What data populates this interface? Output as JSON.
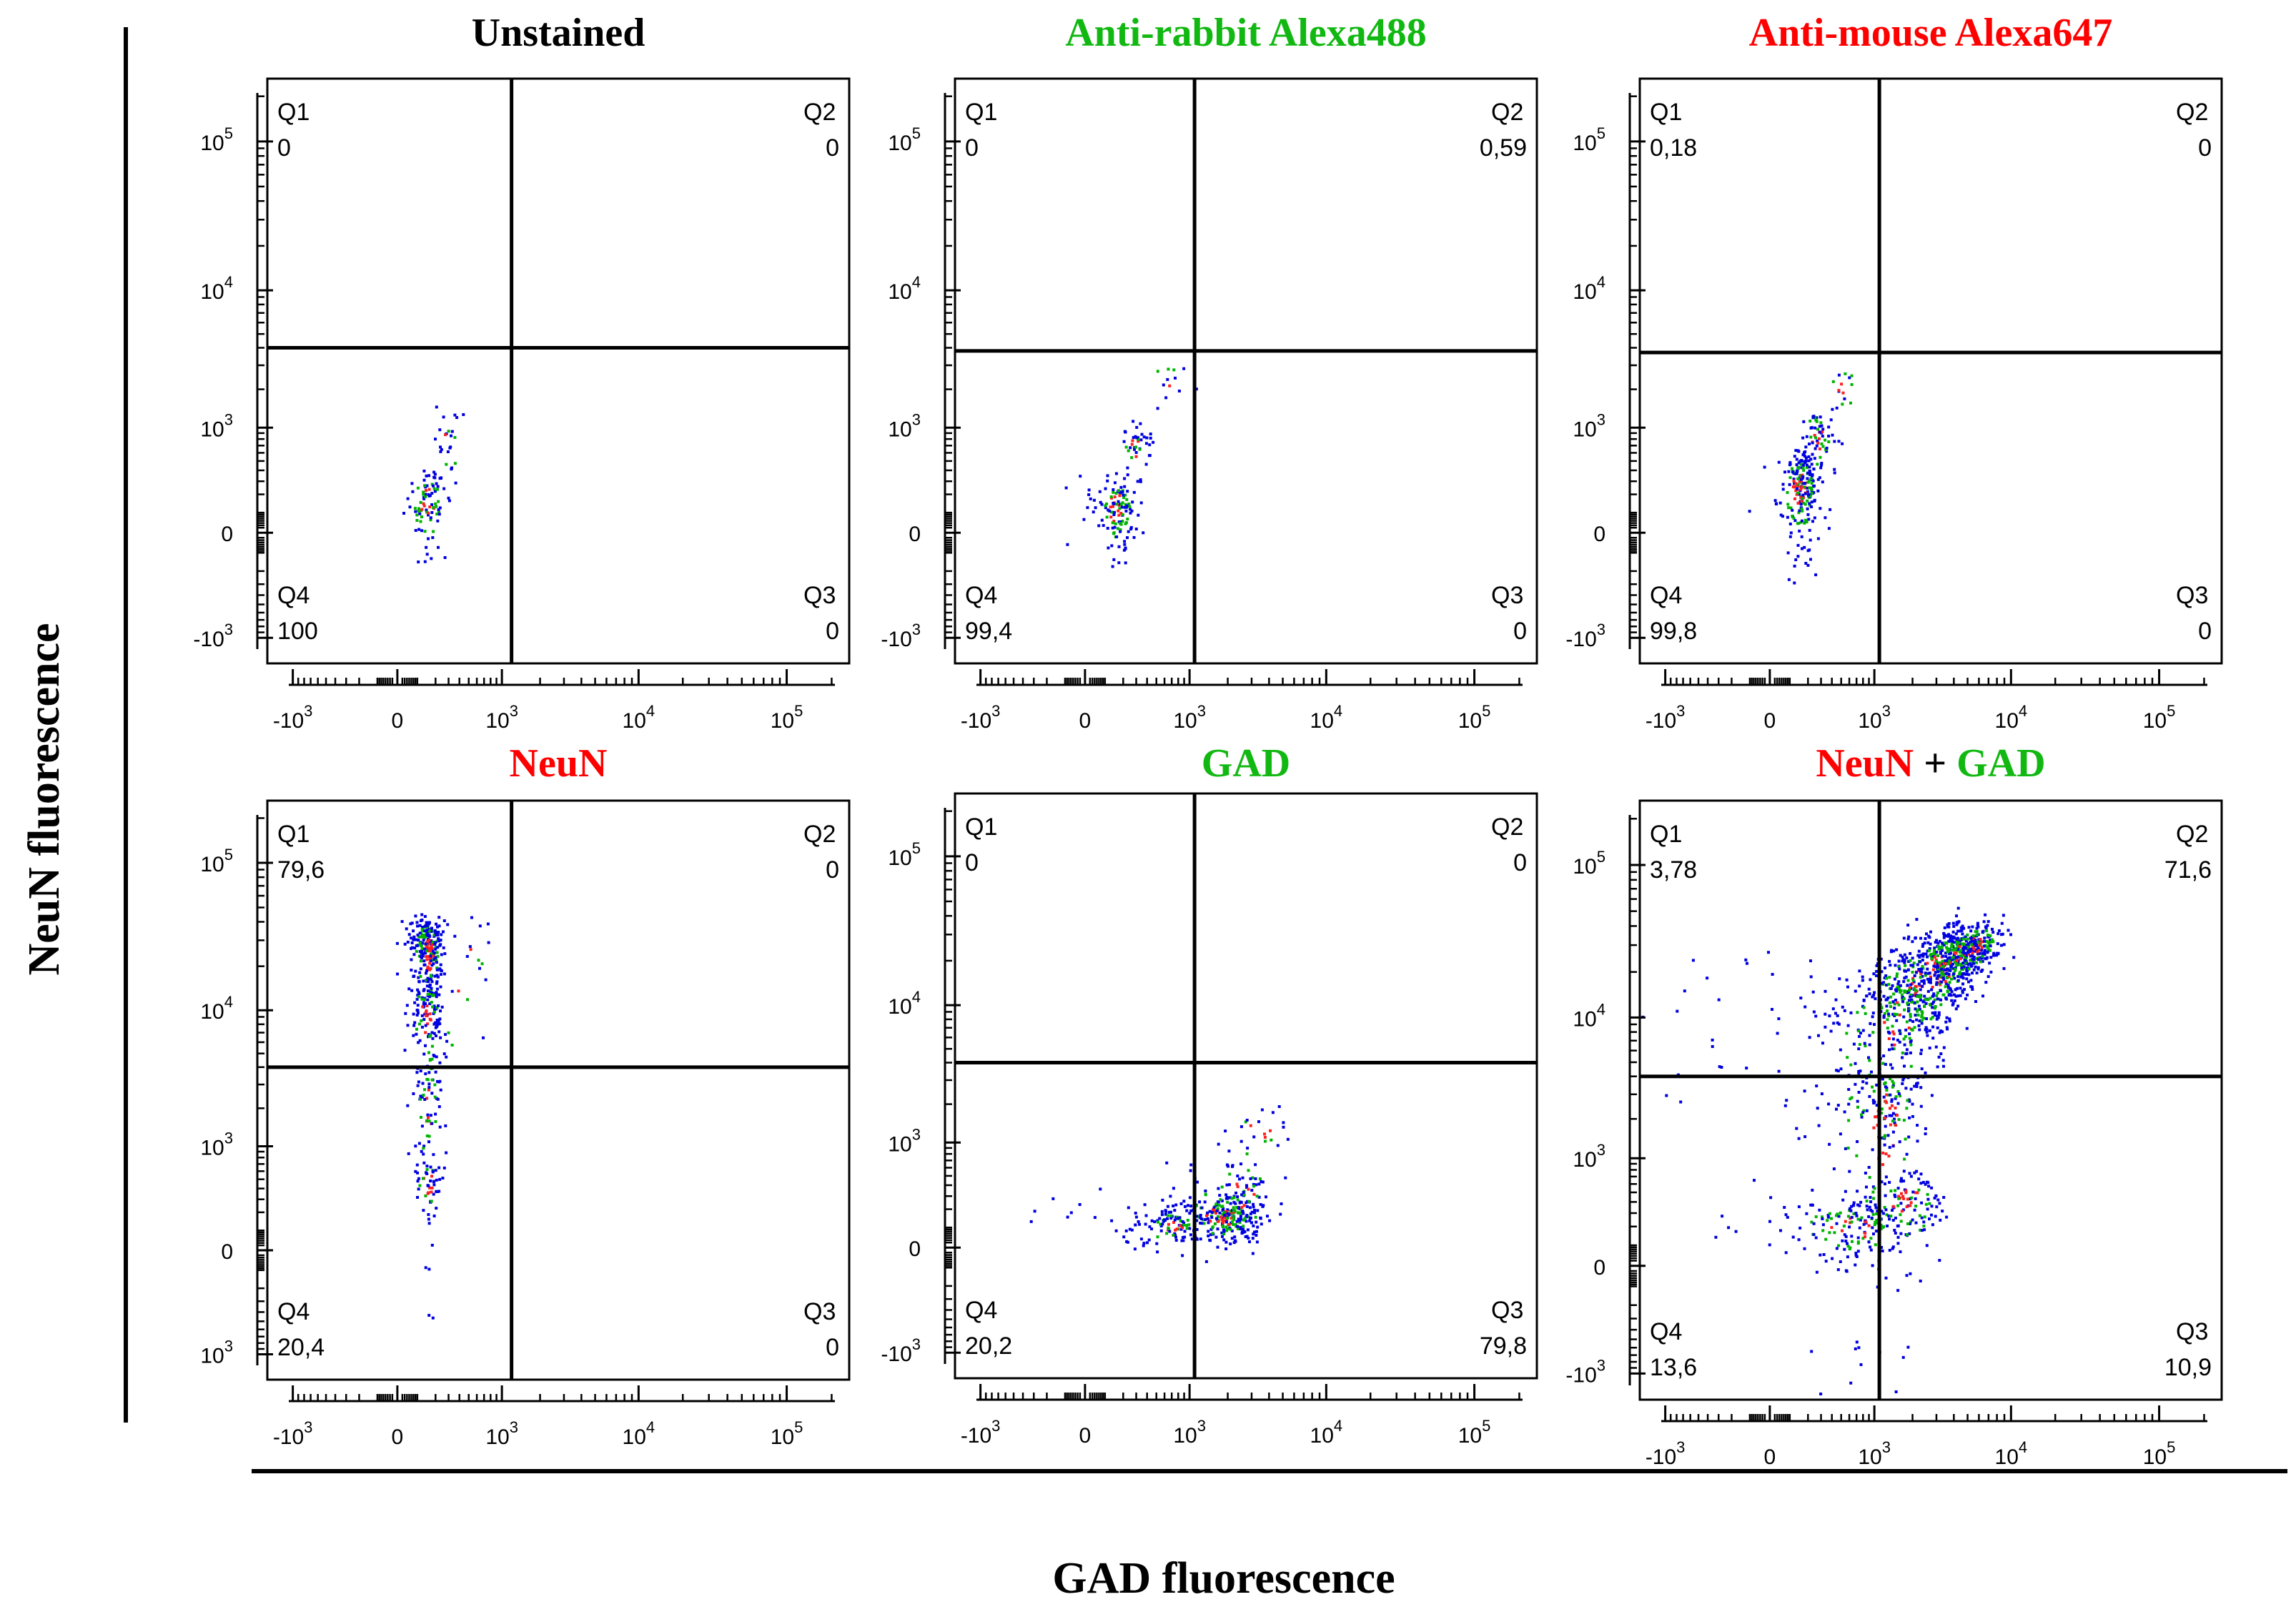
{
  "figure": {
    "y_axis_label": "NeuN fluorescence",
    "x_axis_label": "GAD fluorescence"
  },
  "colors": {
    "red": "#ff0000",
    "green": "#12b812",
    "black": "#000000",
    "density_low": "#0000e0",
    "density_mid": "#00b400",
    "density_high": "#ff2020"
  },
  "chart_data": [
    {
      "type": "scatter",
      "title_parts": [
        {
          "text": "Unstained",
          "color": "black"
        }
      ],
      "quadrants": {
        "Q1": {
          "label": "Q1",
          "value": "0"
        },
        "Q2": {
          "label": "Q2",
          "value": "0"
        },
        "Q3": {
          "label": "Q3",
          "value": "0"
        },
        "Q4": {
          "label": "Q4",
          "value": "100"
        }
      },
      "x_ticks": [
        "-10^3",
        "0",
        "10^3",
        "10^4",
        "10^5"
      ],
      "y_ticks": [
        "10^5",
        "10^4",
        "10^3",
        "0",
        "-10^3"
      ],
      "gate": {
        "x": 1200,
        "y": 4000
      },
      "clusters": [
        {
          "cx": 150,
          "cy": 150,
          "sx": 60,
          "sy": 120,
          "n": 90,
          "corr": 0
        },
        {
          "cx": 300,
          "cy": 700,
          "sx": 60,
          "sy": 300,
          "n": 25,
          "corr": 0
        }
      ]
    },
    {
      "type": "scatter",
      "title_parts": [
        {
          "text": "Anti-rabbit Alexa488",
          "color": "green"
        }
      ],
      "quadrants": {
        "Q1": {
          "label": "Q1",
          "value": "0"
        },
        "Q2": {
          "label": "Q2",
          "value": "0,59"
        },
        "Q3": {
          "label": "Q3",
          "value": "0"
        },
        "Q4": {
          "label": "Q4",
          "value": "99,4"
        }
      },
      "x_ticks": [
        "-10^3",
        "0",
        "10^3",
        "10^4",
        "10^5"
      ],
      "y_ticks": [
        "10^5",
        "10^4",
        "10^3",
        "0",
        "-10^3"
      ],
      "gate": {
        "x": 1100,
        "y": 3800
      },
      "clusters": [
        {
          "cx": 160,
          "cy": 120,
          "sx": 70,
          "sy": 110,
          "n": 130,
          "corr": 0
        },
        {
          "cx": 300,
          "cy": 650,
          "sx": 70,
          "sy": 250,
          "n": 40,
          "corr": 0
        },
        {
          "cx": 650,
          "cy": 2200,
          "sx": 150,
          "sy": 500,
          "n": 12,
          "corr": 0
        }
      ]
    },
    {
      "type": "scatter",
      "title_parts": [
        {
          "text": "Anti-mouse Alexa647",
          "color": "red"
        }
      ],
      "quadrants": {
        "Q1": {
          "label": "Q1",
          "value": "0,18"
        },
        "Q2": {
          "label": "Q2",
          "value": "0"
        },
        "Q3": {
          "label": "Q3",
          "value": "0"
        },
        "Q4": {
          "label": "Q4",
          "value": "99,8"
        }
      },
      "x_ticks": [
        "-10^3",
        "0",
        "10^3",
        "10^4",
        "10^5"
      ],
      "y_ticks": [
        "10^5",
        "10^4",
        "10^3",
        "0",
        "-10^3"
      ],
      "gate": {
        "x": 1100,
        "y": 3700
      },
      "clusters": [
        {
          "cx": 150,
          "cy": 250,
          "sx": 60,
          "sy": 180,
          "n": 220,
          "corr": 0
        },
        {
          "cx": 280,
          "cy": 850,
          "sx": 70,
          "sy": 300,
          "n": 70,
          "corr": 0
        },
        {
          "cx": 550,
          "cy": 2000,
          "sx": 120,
          "sy": 450,
          "n": 15,
          "corr": 0
        }
      ]
    },
    {
      "type": "scatter",
      "title_parts": [
        {
          "text": "NeuN",
          "color": "red"
        }
      ],
      "quadrants": {
        "Q1": {
          "label": "Q1",
          "value": "79,6"
        },
        "Q2": {
          "label": "Q2",
          "value": "0"
        },
        "Q3": {
          "label": "Q3",
          "value": "0"
        },
        "Q4": {
          "label": "Q4",
          "value": "20,4"
        }
      },
      "x_ticks": [
        "-10^3",
        "0",
        "10^3",
        "10^4",
        "10^5"
      ],
      "y_ticks": [
        "10^5",
        "10^4",
        "10^3",
        "0",
        "10^3"
      ],
      "gate": {
        "x": 1200,
        "y": 4000
      },
      "clusters": [
        {
          "cx": 150,
          "cy": 25000,
          "sx": 50,
          "sy": 9000,
          "n": 260,
          "corr": 0
        },
        {
          "cx": 150,
          "cy": 9000,
          "sx": 50,
          "sy": 4000,
          "n": 110,
          "corr": 0
        },
        {
          "cx": 150,
          "cy": 2000,
          "sx": 50,
          "sy": 1000,
          "n": 60,
          "corr": 0
        },
        {
          "cx": 150,
          "cy": 450,
          "sx": 40,
          "sy": 200,
          "n": 50,
          "corr": 0
        },
        {
          "cx": 450,
          "cy": 20000,
          "sx": 200,
          "sy": 12000,
          "n": 25,
          "corr": 0
        }
      ]
    },
    {
      "type": "scatter",
      "title_parts": [
        {
          "text": "GAD",
          "color": "green"
        }
      ],
      "quadrants": {
        "Q1": {
          "label": "Q1",
          "value": "0"
        },
        "Q2": {
          "label": "Q2",
          "value": "0"
        },
        "Q3": {
          "label": "Q3",
          "value": "79,8"
        },
        "Q4": {
          "label": "Q4",
          "value": "20,2"
        }
      },
      "x_ticks": [
        "-10^3",
        "0",
        "10^3",
        "10^4",
        "10^5"
      ],
      "y_ticks": [
        "10^5",
        "10^4",
        "10^3",
        "0",
        "-10^3"
      ],
      "gate": {
        "x": 1100,
        "y": 4000
      },
      "clusters": [
        {
          "cx": 1800,
          "cy": 150,
          "sx": 800,
          "sy": 70,
          "n": 260,
          "corr": 0
        },
        {
          "cx": 700,
          "cy": 100,
          "sx": 250,
          "sy": 50,
          "n": 80,
          "corr": 0
        },
        {
          "cx": 2500,
          "cy": 350,
          "sx": 900,
          "sy": 200,
          "n": 80,
          "corr": 0
        },
        {
          "cx": 3500,
          "cy": 1100,
          "sx": 1200,
          "sy": 450,
          "n": 25,
          "corr": 0
        }
      ]
    },
    {
      "type": "scatter",
      "title_parts": [
        {
          "text": "NeuN",
          "color": "red"
        },
        {
          "text": " + ",
          "color": "black"
        },
        {
          "text": "GAD",
          "color": "green"
        }
      ],
      "quadrants": {
        "Q1": {
          "label": "Q1",
          "value": "3,78"
        },
        "Q2": {
          "label": "Q2",
          "value": "71,6"
        },
        "Q3": {
          "label": "Q3",
          "value": "10,9"
        },
        "Q4": {
          "label": "Q4",
          "value": "13,6"
        }
      },
      "x_ticks": [
        "-10^3",
        "0",
        "10^3",
        "10^4",
        "10^5"
      ],
      "y_ticks": [
        "10^5",
        "10^4",
        "10^3",
        "0",
        "-10^3"
      ],
      "gate": {
        "x": 1100,
        "y": 4000
      },
      "clusters": [
        {
          "cx": 3000,
          "cy": 20000,
          "sx": 1500,
          "sy": 9000,
          "n": 650,
          "corr": 0.6
        },
        {
          "cx": 5000,
          "cy": 28000,
          "sx": 2000,
          "sy": 7000,
          "n": 250,
          "corr": 0.5
        },
        {
          "cx": 1500,
          "cy": 9000,
          "sx": 800,
          "sy": 5000,
          "n": 200,
          "corr": 0.4
        },
        {
          "cx": 1200,
          "cy": 2000,
          "sx": 500,
          "sy": 1500,
          "n": 160,
          "corr": 0
        },
        {
          "cx": 700,
          "cy": 200,
          "sx": 400,
          "sy": 100,
          "n": 150,
          "corr": 0
        },
        {
          "cx": 1800,
          "cy": 400,
          "sx": 700,
          "sy": 200,
          "n": 130,
          "corr": 0
        }
      ]
    }
  ]
}
